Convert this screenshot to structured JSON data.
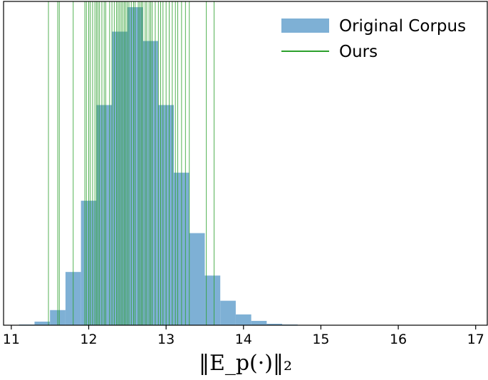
{
  "chart_data": {
    "type": "bar",
    "xlim": [
      10.9,
      17.15
    ],
    "xticks": [
      11,
      12,
      13,
      14,
      15,
      16,
      17
    ],
    "xlabel": "‖E_p(·)‖₂",
    "ylim": [
      0,
      450
    ],
    "legend": {
      "placement": "top-right"
    },
    "grid": false,
    "series": [
      {
        "name": "Original Corpus",
        "kind": "histogram",
        "color": "#7eb0d5",
        "bin_edges": [
          11.1,
          11.3,
          11.5,
          11.7,
          11.9,
          12.1,
          12.3,
          12.5,
          12.7,
          12.9,
          13.1,
          13.3,
          13.5,
          13.7,
          13.9,
          14.1,
          14.3,
          14.5,
          14.7
        ],
        "counts": [
          1,
          5,
          21,
          74,
          173,
          306,
          408,
          442,
          395,
          306,
          212,
          128,
          69,
          34,
          15,
          6,
          2,
          1
        ]
      },
      {
        "name": "Ours",
        "kind": "vlines",
        "color": "#2ca02c",
        "values": [
          11.48,
          11.6,
          11.62,
          11.8,
          11.95,
          11.97,
          12.0,
          12.02,
          12.05,
          12.08,
          12.1,
          12.12,
          12.14,
          12.17,
          12.2,
          12.22,
          12.27,
          12.3,
          12.33,
          12.36,
          12.38,
          12.4,
          12.42,
          12.44,
          12.46,
          12.48,
          12.5,
          12.52,
          12.55,
          12.58,
          12.6,
          12.64,
          12.66,
          12.68,
          12.7,
          12.73,
          12.75,
          12.78,
          12.8,
          12.82,
          12.86,
          12.9,
          12.93,
          12.96,
          13.0,
          13.04,
          13.08,
          13.12,
          13.15,
          13.2,
          13.25,
          13.3,
          13.52,
          13.62
        ]
      }
    ]
  }
}
